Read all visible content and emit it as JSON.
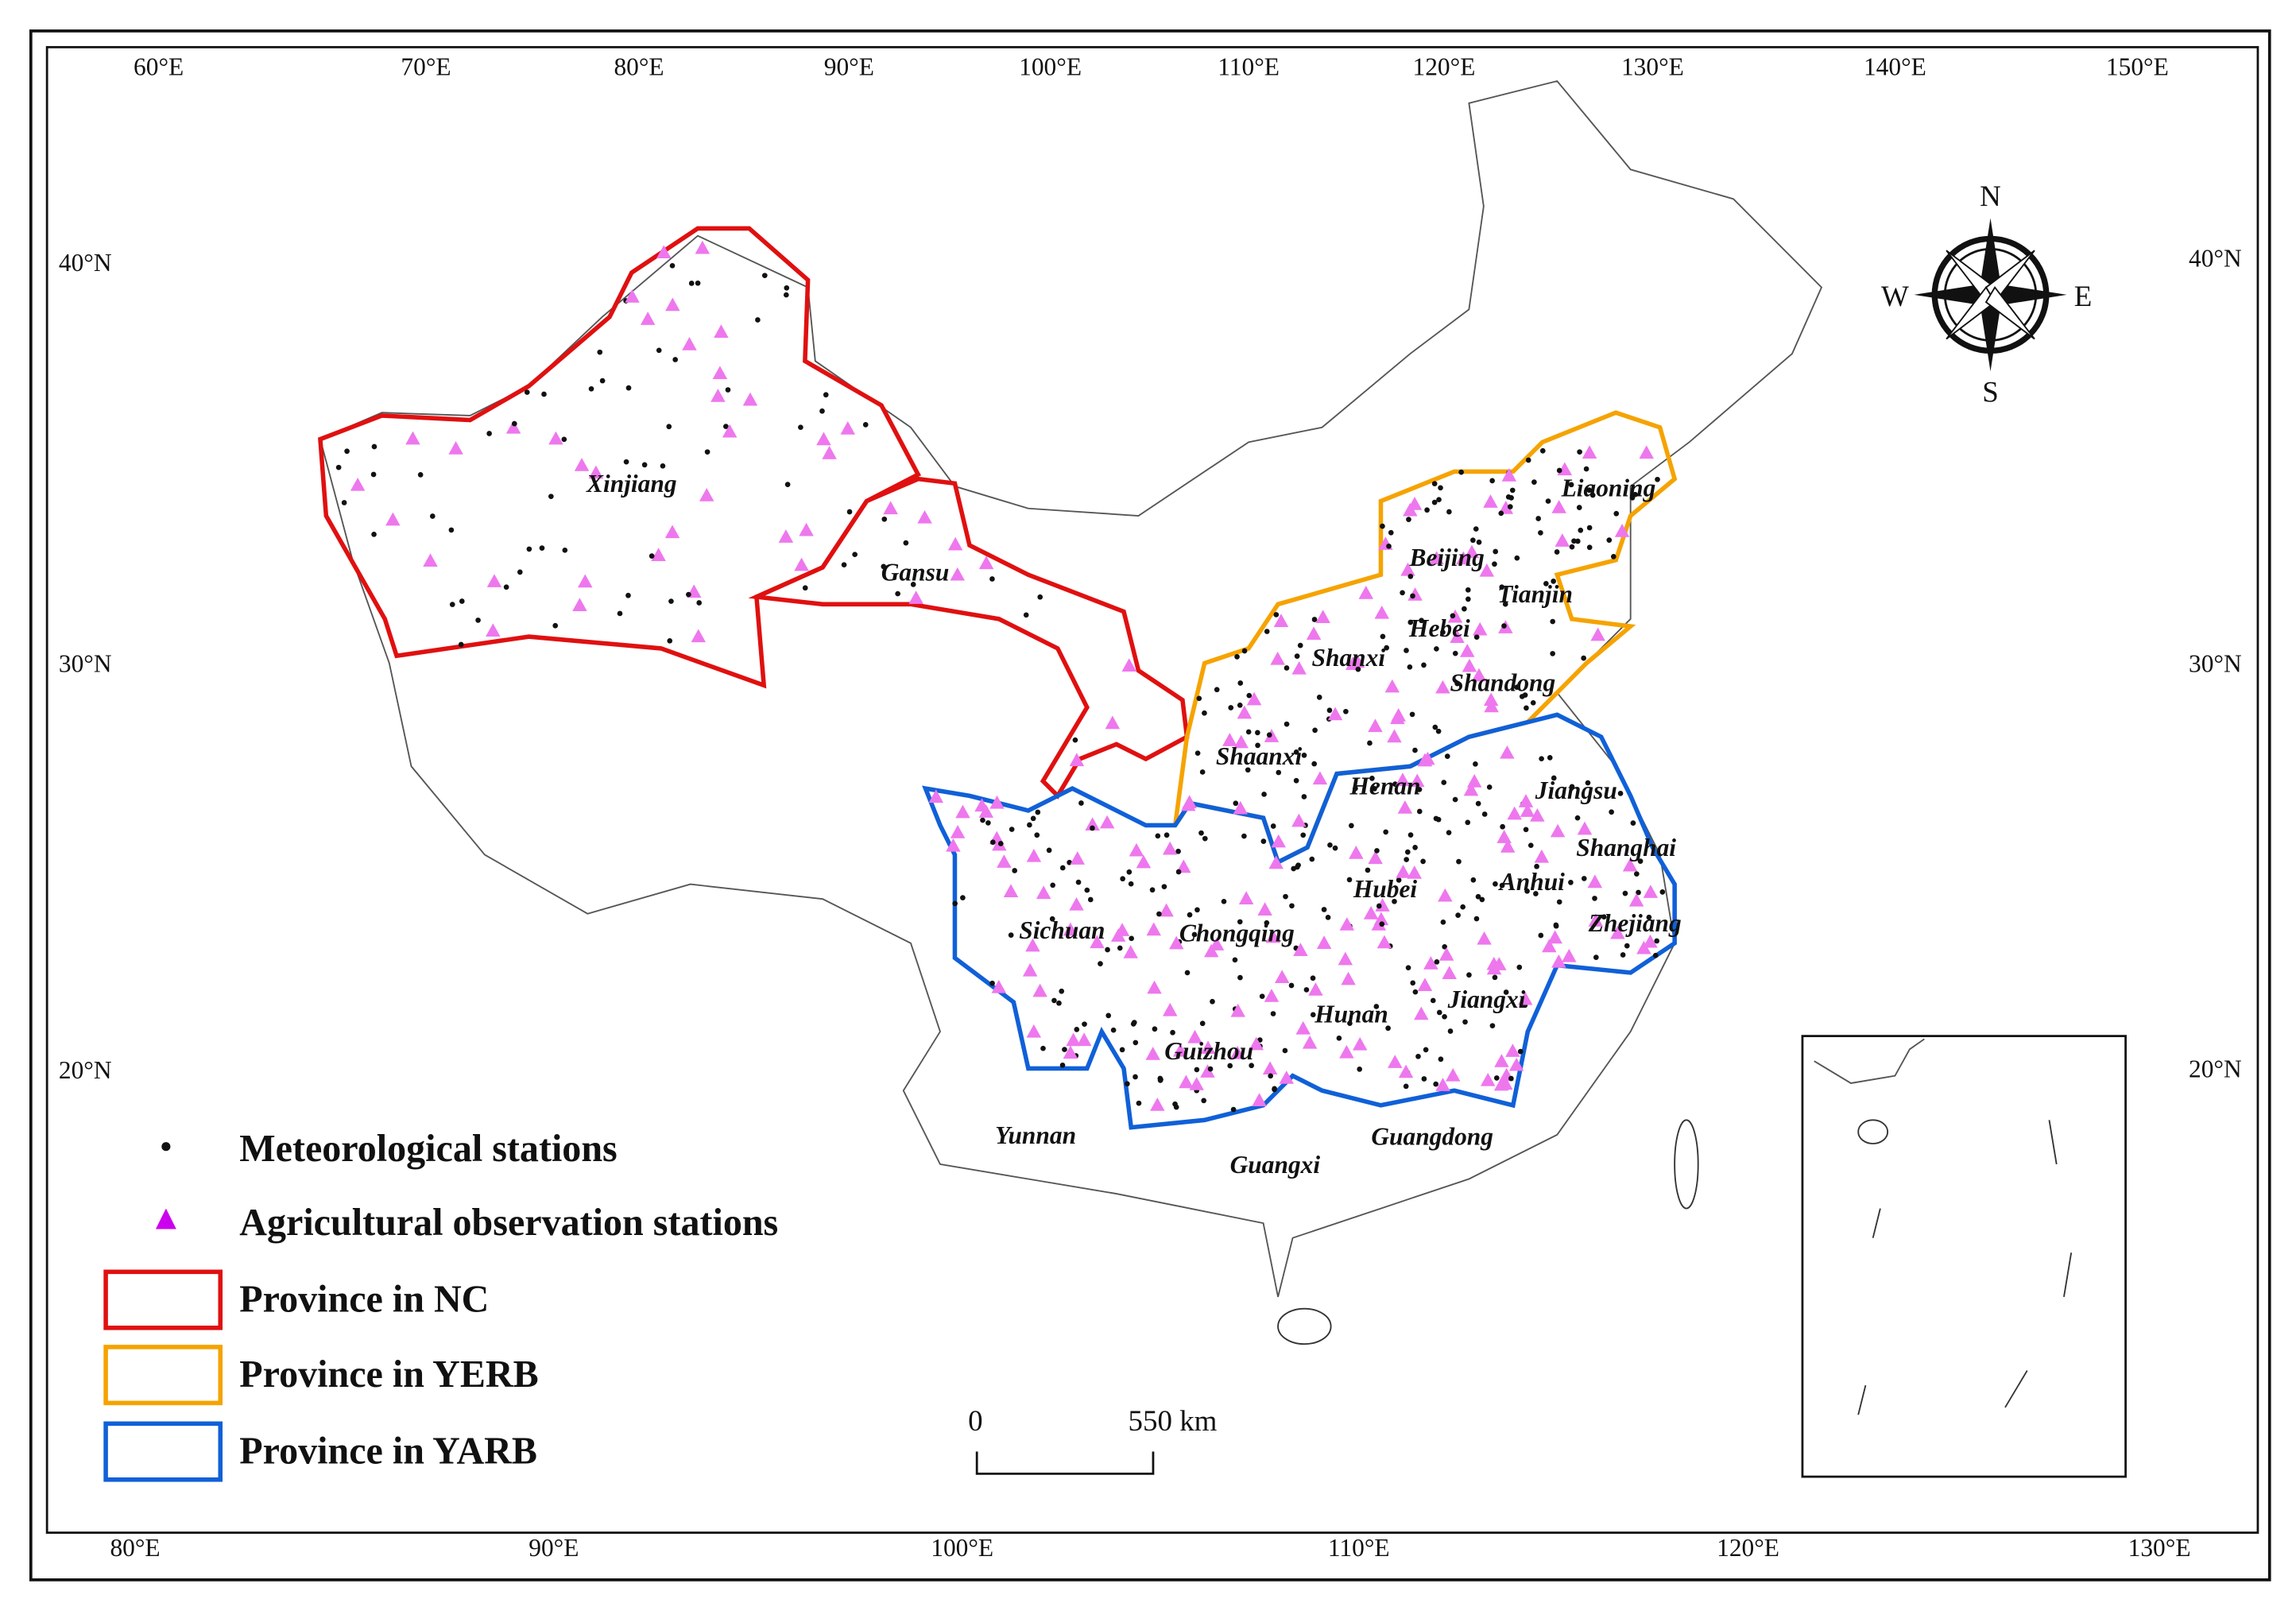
{
  "map": {
    "top_ticks": [
      "60°E",
      "70°E",
      "80°E",
      "90°E",
      "100°E",
      "110°E",
      "120°E",
      "130°E",
      "140°E",
      "150°E"
    ],
    "bottom_ticks": [
      "80°E",
      "90°E",
      "100°E",
      "110°E",
      "120°E",
      "130°E"
    ],
    "left_ticks": [
      "40°N",
      "30°N",
      "20°N"
    ],
    "right_ticks": [
      "40°N",
      "30°N",
      "20°N"
    ],
    "provinces": [
      "Xinjiang",
      "Gansu",
      "Liaoning",
      "Beijing",
      "Tianjin",
      "Hebei",
      "Shanxi",
      "Shandong",
      "Shaanxi",
      "Henan",
      "Jiangsu",
      "Shanghai",
      "Anhui",
      "Hubei",
      "Zhejiang",
      "Sichuan",
      "Chongqing",
      "Jiangxi",
      "Hunan",
      "Guizhou",
      "Yunnan",
      "Guangxi",
      "Guangdong"
    ],
    "legend": [
      "Meteorological stations",
      "Agricultural observation stations",
      "Province in NC",
      "Province in YERB",
      "Province in YARB"
    ],
    "scale_bar": [
      "0",
      "550 km"
    ],
    "compass": [
      "N",
      "E",
      "S",
      "W"
    ]
  }
}
